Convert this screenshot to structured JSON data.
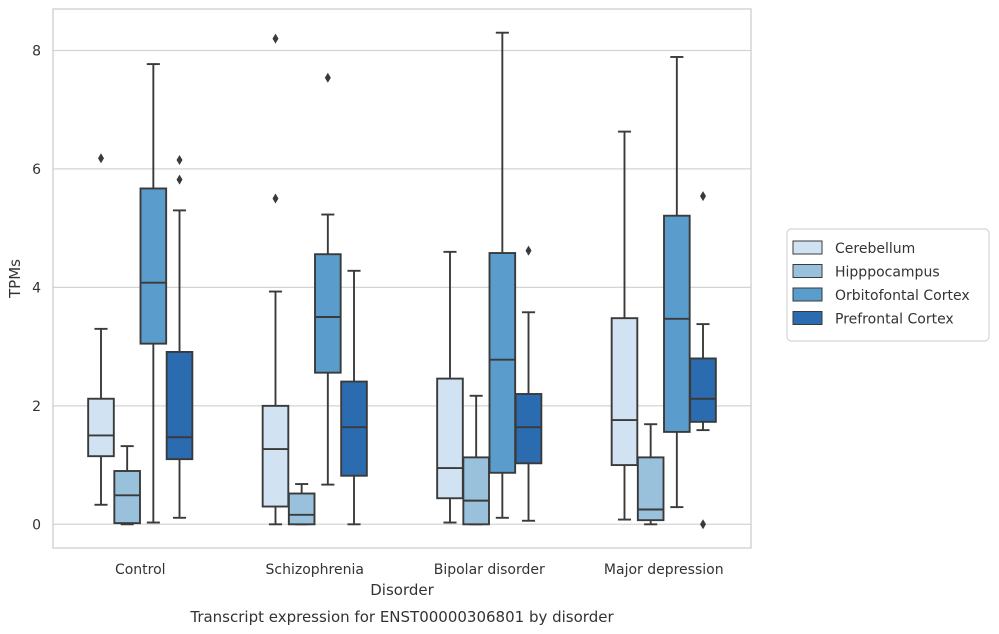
{
  "chart_data": {
    "type": "box",
    "caption": "Transcript expression for ENST00000306801 by disorder",
    "xlabel": "Disorder",
    "ylabel": "TPMs",
    "ylim": [
      -0.4,
      8.7
    ],
    "yticks": [
      0,
      2,
      4,
      6,
      8
    ],
    "grid": "horizontal",
    "legend_position": "right",
    "categories": [
      "Control",
      "Schizophrenia",
      "Bipolar disorder",
      "Major depression"
    ],
    "series": [
      {
        "name": "Cerebellum",
        "color": "#d1e2f2",
        "boxes": [
          {
            "whislo": 0.33,
            "q1": 1.15,
            "med": 1.5,
            "q3": 2.12,
            "whishi": 3.3,
            "fliers": [
              6.18
            ]
          },
          {
            "whislo": 0.0,
            "q1": 0.3,
            "med": 1.27,
            "q3": 2.0,
            "whishi": 3.93,
            "fliers": [
              5.5,
              8.2
            ]
          },
          {
            "whislo": 0.03,
            "q1": 0.44,
            "med": 0.95,
            "q3": 2.46,
            "whishi": 4.6,
            "fliers": []
          },
          {
            "whislo": 0.08,
            "q1": 1.0,
            "med": 1.76,
            "q3": 3.48,
            "whishi": 6.63,
            "fliers": []
          }
        ]
      },
      {
        "name": "Hipppocampus",
        "color": "#9ac1dc",
        "boxes": [
          {
            "whislo": 0.0,
            "q1": 0.02,
            "med": 0.49,
            "q3": 0.9,
            "whishi": 1.32,
            "fliers": []
          },
          {
            "whislo": 0.0,
            "q1": 0.0,
            "med": 0.16,
            "q3": 0.52,
            "whishi": 0.68,
            "fliers": []
          },
          {
            "whislo": 0.0,
            "q1": 0.0,
            "med": 0.4,
            "q3": 1.13,
            "whishi": 2.17,
            "fliers": []
          },
          {
            "whislo": 0.0,
            "q1": 0.07,
            "med": 0.25,
            "q3": 1.13,
            "whishi": 1.69,
            "fliers": []
          }
        ]
      },
      {
        "name": "Orbitofontal Cortex",
        "color": "#5a9dcc",
        "boxes": [
          {
            "whislo": 0.03,
            "q1": 3.05,
            "med": 4.08,
            "q3": 5.67,
            "whishi": 7.77,
            "fliers": []
          },
          {
            "whislo": 0.67,
            "q1": 2.56,
            "med": 3.5,
            "q3": 4.56,
            "whishi": 5.23,
            "fliers": [
              7.54
            ]
          },
          {
            "whislo": 0.11,
            "q1": 0.87,
            "med": 2.78,
            "q3": 4.58,
            "whishi": 8.3,
            "fliers": []
          },
          {
            "whislo": 0.29,
            "q1": 1.56,
            "med": 3.47,
            "q3": 5.21,
            "whishi": 7.89,
            "fliers": []
          }
        ]
      },
      {
        "name": "Prefrontal Cortex",
        "color": "#2b6cb0",
        "boxes": [
          {
            "whislo": 0.11,
            "q1": 1.1,
            "med": 1.47,
            "q3": 2.91,
            "whishi": 5.3,
            "fliers": [
              5.82,
              6.15
            ]
          },
          {
            "whislo": 0.0,
            "q1": 0.82,
            "med": 1.64,
            "q3": 2.41,
            "whishi": 4.28,
            "fliers": []
          },
          {
            "whislo": 0.06,
            "q1": 1.03,
            "med": 1.64,
            "q3": 2.2,
            "whishi": 3.58,
            "fliers": [
              4.62
            ]
          },
          {
            "whislo": 1.59,
            "q1": 1.73,
            "med": 2.12,
            "q3": 2.8,
            "whishi": 3.38,
            "fliers": [
              0.0,
              5.54
            ]
          }
        ]
      }
    ]
  }
}
